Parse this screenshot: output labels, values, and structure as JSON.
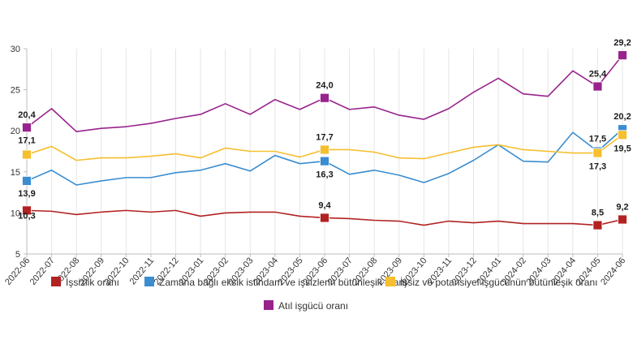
{
  "chart_data": {
    "type": "line",
    "title": "",
    "xlabel": "",
    "ylabel": "",
    "ylim": [
      5,
      30
    ],
    "yticks": [
      5,
      10,
      15,
      20,
      25,
      30
    ],
    "grid": "vertical",
    "legend_position": "bottom",
    "categories": [
      "2022-06",
      "2022-07",
      "2022-08",
      "2022-09",
      "2022-10",
      "2022-11",
      "2022-12",
      "2023-01",
      "2023-02",
      "2023-03",
      "2023-04",
      "2023-05",
      "2023-06",
      "2023-07",
      "2023-08",
      "2023-09",
      "2023-10",
      "2023-11",
      "2023-12",
      "2024-01",
      "2024-02",
      "2024-03",
      "2024-04",
      "2024-05",
      "2024-06"
    ],
    "marked_indices": [
      0,
      12,
      23,
      24
    ],
    "series": [
      {
        "name": "İşsizlik oranı",
        "color": "#b22222",
        "values": [
          10.3,
          10.2,
          9.8,
          10.1,
          10.3,
          10.1,
          10.3,
          9.6,
          10.0,
          10.1,
          10.1,
          9.6,
          9.4,
          9.3,
          9.1,
          9.0,
          8.5,
          9.0,
          8.8,
          9.0,
          8.7,
          8.7,
          8.7,
          8.5,
          9.2
        ],
        "labels": {
          "0": "10,3",
          "12": "9,4",
          "23": "8,5",
          "24": "9,2"
        }
      },
      {
        "name": "Zamana bağlı eksik istihdam ve işsizlerin bütünleşik oranı",
        "color": "#3a8dd0",
        "values": [
          13.9,
          15.2,
          13.4,
          13.9,
          14.3,
          14.3,
          14.9,
          15.2,
          16.0,
          15.1,
          17.0,
          16.0,
          16.3,
          14.7,
          15.2,
          14.6,
          13.7,
          14.8,
          16.4,
          18.3,
          16.3,
          16.2,
          19.8,
          17.5,
          20.2
        ],
        "labels": {
          "0": "13,9",
          "12": "16,3",
          "23": "17,5",
          "24": "20,2"
        }
      },
      {
        "name": "İşsiz ve potansiyel işgücünün bütünleşik oranı",
        "color": "#f5bf2f",
        "values": [
          17.1,
          18.1,
          16.4,
          16.7,
          16.7,
          16.9,
          17.2,
          16.7,
          17.9,
          17.5,
          17.5,
          16.8,
          17.7,
          17.7,
          17.4,
          16.7,
          16.6,
          17.3,
          18.0,
          18.3,
          17.7,
          17.5,
          17.3,
          17.3,
          19.5
        ],
        "labels": {
          "0": "17,1",
          "12": "17,7",
          "23": "17,3",
          "24": "19,5"
        }
      },
      {
        "name": "Atıl işgücü oranı",
        "color": "#98238c",
        "values": [
          20.4,
          22.7,
          19.9,
          20.3,
          20.5,
          20.9,
          21.5,
          22.0,
          23.3,
          22.0,
          23.8,
          22.6,
          24.0,
          22.6,
          22.9,
          21.9,
          21.4,
          22.7,
          24.7,
          26.4,
          24.5,
          24.2,
          27.3,
          25.4,
          29.2
        ],
        "labels": {
          "0": "20,4",
          "12": "24,0",
          "23": "25,4",
          "24": "29,2"
        }
      }
    ]
  }
}
